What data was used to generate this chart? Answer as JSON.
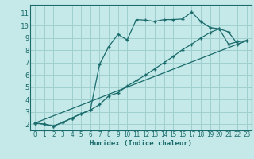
{
  "background_color": "#c5e8e8",
  "grid_color": "#9fcfcf",
  "line_color": "#1a6b6b",
  "xlabel": "Humidex (Indice chaleur)",
  "xlim": [
    -0.5,
    23.5
  ],
  "ylim": [
    1.5,
    11.7
  ],
  "yticks": [
    2,
    3,
    4,
    5,
    6,
    7,
    8,
    9,
    10,
    11
  ],
  "xticks": [
    0,
    1,
    2,
    3,
    4,
    5,
    6,
    7,
    8,
    9,
    10,
    11,
    12,
    13,
    14,
    15,
    16,
    17,
    18,
    19,
    20,
    21,
    22,
    23
  ],
  "curve2_x": [
    0,
    1,
    2,
    3,
    4,
    5,
    6,
    7,
    8,
    9,
    10,
    11,
    12,
    13,
    14,
    15,
    16,
    17,
    18,
    19,
    20,
    21,
    22,
    23
  ],
  "curve2_y": [
    2.1,
    2.0,
    1.85,
    2.15,
    2.5,
    2.85,
    3.15,
    6.85,
    8.3,
    9.3,
    8.85,
    10.5,
    10.45,
    10.35,
    10.5,
    10.5,
    10.55,
    11.1,
    10.35,
    9.85,
    9.75,
    9.5,
    8.5,
    8.8
  ],
  "curve1_x": [
    0,
    1,
    2,
    3,
    4,
    5,
    6,
    7,
    8,
    9,
    10,
    11,
    12,
    13,
    14,
    15,
    16,
    17,
    18,
    19,
    20,
    21,
    22,
    23
  ],
  "curve1_y": [
    2.1,
    2.0,
    1.85,
    2.15,
    2.5,
    2.85,
    3.15,
    3.6,
    4.3,
    4.55,
    5.1,
    5.55,
    6.0,
    6.5,
    7.0,
    7.5,
    8.05,
    8.5,
    9.0,
    9.45,
    9.75,
    8.5,
    8.7,
    8.8
  ],
  "curve3_x": [
    0,
    23
  ],
  "curve3_y": [
    2.1,
    8.8
  ]
}
